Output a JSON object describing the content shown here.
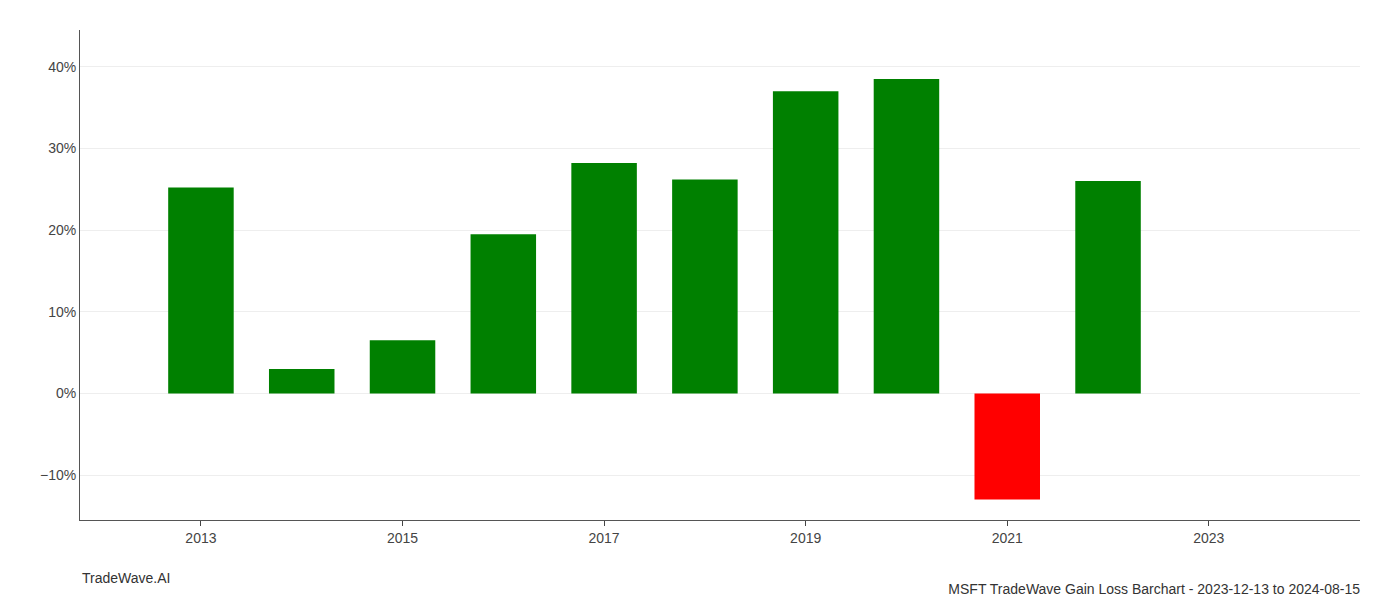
{
  "chart_data": {
    "type": "bar",
    "title": "MSFT TradeWave Gain Loss Barchart - 2023-12-13 to 2024-08-15",
    "annotations": [
      "TradeWave.AI"
    ],
    "x": [
      2013,
      2014,
      2015,
      2016,
      2017,
      2018,
      2019,
      2020,
      2021,
      2022
    ],
    "values": [
      0.252,
      0.03,
      0.065,
      0.195,
      0.282,
      0.262,
      0.37,
      0.385,
      -0.13,
      0.26
    ],
    "colors": [
      "#008000",
      "#008000",
      "#008000",
      "#008000",
      "#008000",
      "#008000",
      "#008000",
      "#008000",
      "#ff0000",
      "#008000"
    ],
    "xlim": [
      2011.8,
      2024.5
    ],
    "xticks": [
      2013,
      2015,
      2017,
      2019,
      2021,
      2023
    ],
    "ylim": [
      -0.155,
      0.445
    ],
    "yticks": [
      {
        "value": -0.1,
        "label": "−10%"
      },
      {
        "value": 0.0,
        "label": "0%"
      },
      {
        "value": 0.1,
        "label": "10%"
      },
      {
        "value": 0.2,
        "label": "20%"
      },
      {
        "value": 0.3,
        "label": "30%"
      },
      {
        "value": 0.4,
        "label": "40%"
      }
    ],
    "grid": "y"
  }
}
